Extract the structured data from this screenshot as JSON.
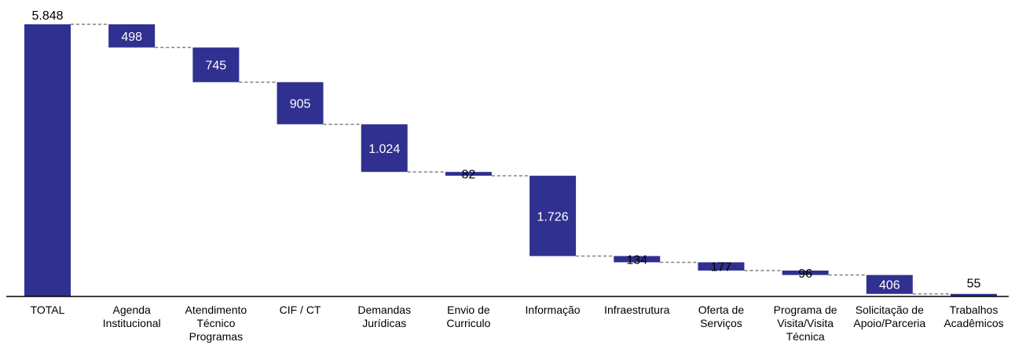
{
  "chart_data": {
    "type": "waterfall",
    "colors": {
      "bar": "#303090",
      "connector": "#808080",
      "axis": "#000000"
    },
    "total": {
      "category": [
        "TOTAL"
      ],
      "value": 5848,
      "label": "5.848"
    },
    "steps": [
      {
        "category": [
          "Agenda",
          "Institucional"
        ],
        "value": 498,
        "label": "498"
      },
      {
        "category": [
          "Atendimento",
          "Técnico",
          "Programas"
        ],
        "value": 745,
        "label": "745"
      },
      {
        "category": [
          "CIF / CT"
        ],
        "value": 905,
        "label": "905"
      },
      {
        "category": [
          "Demandas",
          "Jurídicas"
        ],
        "value": 1024,
        "label": "1.024"
      },
      {
        "category": [
          "Envio de",
          "Curriculo"
        ],
        "value": 82,
        "label": "82"
      },
      {
        "category": [
          "Informação"
        ],
        "value": 1726,
        "label": "1.726"
      },
      {
        "category": [
          "Infraestrutura"
        ],
        "value": 134,
        "label": "134"
      },
      {
        "category": [
          "Oferta de",
          "Serviços"
        ],
        "value": 177,
        "label": "177"
      },
      {
        "category": [
          "Programa de",
          "Visita/Visita",
          "Técnica"
        ],
        "value": 96,
        "label": "96"
      },
      {
        "category": [
          "Solicitação de",
          "Apoio/Parceria"
        ],
        "value": 406,
        "label": "406"
      },
      {
        "category": [
          "Trabalhos",
          "Acadêmicos"
        ],
        "value": 55,
        "label": "55"
      }
    ],
    "ylim": [
      0,
      5848
    ]
  }
}
